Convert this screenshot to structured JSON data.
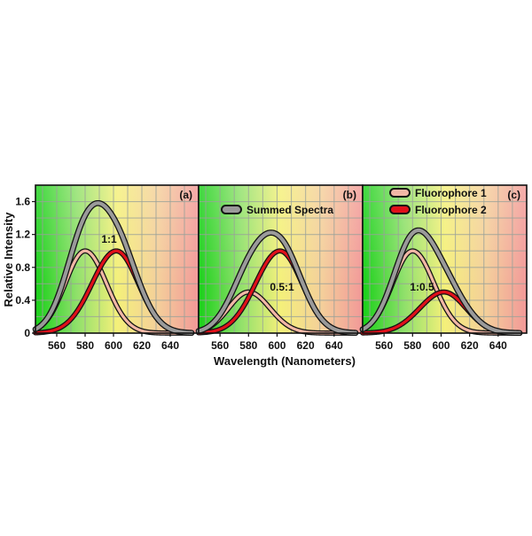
{
  "chart_data": {
    "type": "line",
    "xlabel": "Wavelength (Nanometers)",
    "ylabel": "Relative Intensity",
    "xlim": [
      543,
      660
    ],
    "ylim": [
      0,
      1.8
    ],
    "x_ticks": [
      560,
      580,
      600,
      620,
      640
    ],
    "y_ticks": [
      0,
      0.4,
      0.8,
      1.2,
      1.6
    ],
    "y_tick_labels": [
      "0",
      "0.4",
      "0.8",
      "1.2",
      "1.6"
    ],
    "grid": true,
    "background": "spectral gradient green-yellow-red",
    "legend": {
      "summed": "Summed Spectra",
      "fluor1": "Fluorophore 1",
      "fluor2": "Fluorophore 2"
    },
    "colors": {
      "summed": "#9a9a9a",
      "fluor1": "#f2b7a6",
      "fluor2": "#e0101a",
      "outline": "#141414",
      "grid": "#9aa29a",
      "gradient": [
        "#19d019",
        "#8ee06a",
        "#f4f07a",
        "#f4cf9a",
        "#f29898"
      ]
    },
    "peaks": {
      "fluorophore_1_nm": 580,
      "fluorophore_2_nm": 602
    },
    "panels": [
      {
        "label": "(a)",
        "ratio_label": "1:1",
        "amplitude_1": 1.0,
        "amplitude_2": 1.0,
        "series": [
          {
            "name": "Summed Spectra",
            "x": [
              545,
              560,
              570,
              580,
              590,
              600,
              610,
              620,
              630,
              640,
              650
            ],
            "values": [
              0.2,
              0.8,
              1.33,
              1.65,
              1.73,
              1.58,
              1.19,
              0.69,
              0.31,
              0.1,
              0.03
            ]
          },
          {
            "name": "Fluorophore 1",
            "x": [
              545,
              560,
              570,
              580,
              590,
              600,
              610,
              620,
              630,
              640,
              650
            ],
            "values": [
              0.2,
              0.67,
              0.92,
              1.0,
              0.88,
              0.6,
              0.33,
              0.14,
              0.05,
              0.01,
              0.0
            ]
          },
          {
            "name": "Fluorophore 2",
            "x": [
              545,
              560,
              570,
              580,
              590,
              600,
              610,
              620,
              630,
              640,
              650
            ],
            "values": [
              0.0,
              0.13,
              0.41,
              0.65,
              0.85,
              0.98,
              0.86,
              0.55,
              0.26,
              0.09,
              0.03
            ]
          }
        ]
      },
      {
        "label": "(b)",
        "ratio_label": "0.5:1",
        "amplitude_1": 0.5,
        "amplitude_2": 1.0,
        "series": [
          {
            "name": "Summed Spectra",
            "x": [
              545,
              560,
              570,
              580,
              590,
              600,
              610,
              620,
              630,
              640,
              650
            ],
            "values": [
              0.1,
              0.47,
              0.87,
              1.15,
              1.29,
              1.28,
              1.03,
              0.62,
              0.29,
              0.1,
              0.03
            ]
          },
          {
            "name": "Fluorophore 1",
            "x": [
              545,
              560,
              570,
              580,
              590,
              600,
              610,
              620,
              630,
              640,
              650
            ],
            "values": [
              0.1,
              0.34,
              0.46,
              0.5,
              0.44,
              0.3,
              0.17,
              0.07,
              0.03,
              0.0,
              0.0
            ]
          },
          {
            "name": "Fluorophore 2",
            "x": [
              545,
              560,
              570,
              580,
              590,
              600,
              610,
              620,
              630,
              640,
              650
            ],
            "values": [
              0.0,
              0.13,
              0.41,
              0.65,
              0.85,
              0.98,
              0.86,
              0.55,
              0.26,
              0.09,
              0.03
            ]
          }
        ]
      },
      {
        "label": "(c)",
        "ratio_label": "1:0.5",
        "amplitude_1": 1.0,
        "amplitude_2": 0.5,
        "series": [
          {
            "name": "Summed Spectra",
            "x": [
              545,
              560,
              570,
              580,
              590,
              600,
              610,
              620,
              630,
              640,
              650
            ],
            "values": [
              0.2,
              0.74,
              1.13,
              1.33,
              1.31,
              1.09,
              0.76,
              0.41,
              0.18,
              0.06,
              0.02
            ]
          },
          {
            "name": "Fluorophore 1",
            "x": [
              545,
              560,
              570,
              580,
              590,
              600,
              610,
              620,
              630,
              640,
              650
            ],
            "values": [
              0.2,
              0.67,
              0.92,
              1.0,
              0.88,
              0.6,
              0.33,
              0.14,
              0.05,
              0.01,
              0.0
            ]
          },
          {
            "name": "Fluorophore 2",
            "x": [
              545,
              560,
              570,
              580,
              590,
              600,
              610,
              620,
              630,
              640,
              650
            ],
            "values": [
              0.0,
              0.07,
              0.21,
              0.33,
              0.43,
              0.49,
              0.43,
              0.28,
              0.13,
              0.05,
              0.02
            ]
          }
        ]
      }
    ]
  }
}
